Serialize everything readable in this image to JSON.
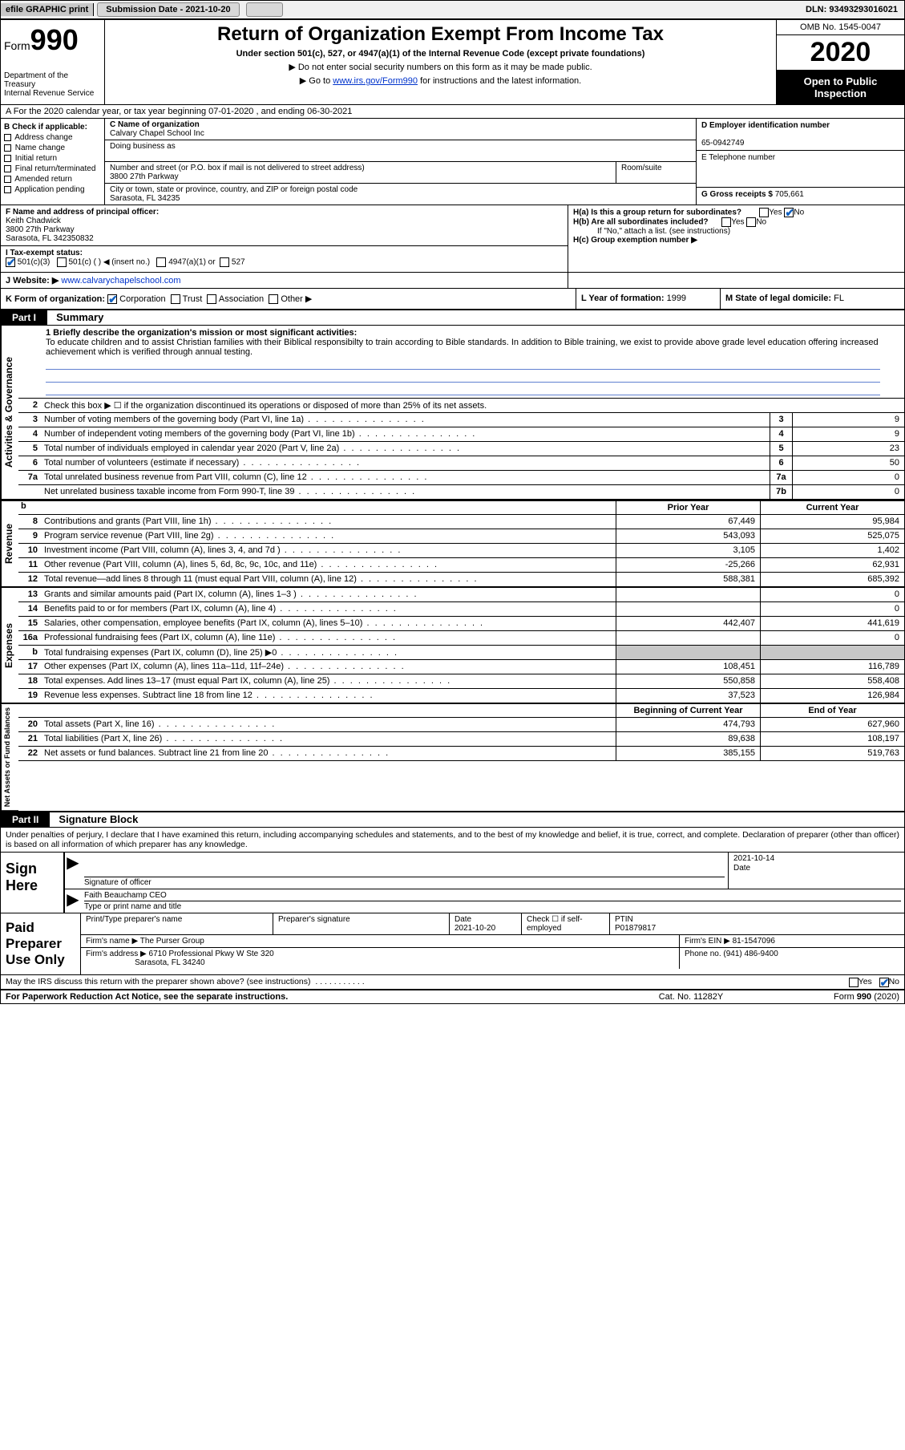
{
  "topbar": {
    "efile": "efile GRAPHIC print",
    "submission_label": "Submission Date - 2021-10-20",
    "dln": "DLN: 93493293016021"
  },
  "header": {
    "form_word": "Form",
    "form_num": "990",
    "dept": "Department of the Treasury\nInternal Revenue Service",
    "title": "Return of Organization Exempt From Income Tax",
    "subtitle": "Under section 501(c), 527, or 4947(a)(1) of the Internal Revenue Code (except private foundations)",
    "arrow1": "▶ Do not enter social security numbers on this form as it may be made public.",
    "arrow2_pre": "▶ Go to ",
    "arrow2_link": "www.irs.gov/Form990",
    "arrow2_post": " for instructions and the latest information.",
    "omb": "OMB No. 1545-0047",
    "year": "2020",
    "open": "Open to Public Inspection"
  },
  "lineA": "A For the 2020 calendar year, or tax year beginning 07-01-2020    , and ending 06-30-2021",
  "B": {
    "header": "B Check if applicable:",
    "items": [
      "Address change",
      "Name change",
      "Initial return",
      "Final return/terminated",
      "Amended return",
      "Application pending"
    ]
  },
  "C": {
    "name_label": "C Name of organization",
    "name": "Calvary Chapel School Inc",
    "dba_label": "Doing business as",
    "dba": "",
    "street_label": "Number and street (or P.O. box if mail is not delivered to street address)",
    "room_label": "Room/suite",
    "street": "3800 27th Parkway",
    "city_label": "City or town, state or province, country, and ZIP or foreign postal code",
    "city": "Sarasota, FL  34235"
  },
  "D": {
    "label": "D Employer identification number",
    "value": "65-0942749"
  },
  "E": {
    "label": "E Telephone number",
    "value": ""
  },
  "G": {
    "label": "G Gross receipts $",
    "value": "705,661"
  },
  "F": {
    "label": "F  Name and address of principal officer:",
    "name": "Keith Chadwick",
    "addr1": "3800 27th Parkway",
    "addr2": "Sarasota, FL  342350832"
  },
  "H": {
    "a": "H(a)  Is this a group return for subordinates?",
    "a_yes": "Yes",
    "a_no": "No",
    "b": "H(b)  Are all subordinates included?",
    "b_yes": "Yes",
    "b_no": "No",
    "b_note": "If \"No,\" attach a list. (see instructions)",
    "c": "H(c)  Group exemption number ▶"
  },
  "I": {
    "label": "I   Tax-exempt status:",
    "opts": [
      "501(c)(3)",
      "501(c) (  ) ◀ (insert no.)",
      "4947(a)(1) or",
      "527"
    ]
  },
  "J": {
    "label": "J   Website: ▶",
    "value": "www.calvarychapelschool.com"
  },
  "K": {
    "label": "K Form of organization:",
    "opts": [
      "Corporation",
      "Trust",
      "Association",
      "Other ▶"
    ]
  },
  "L": {
    "label": "L Year of formation:",
    "value": "1999"
  },
  "M": {
    "label": "M State of legal domicile:",
    "value": "FL"
  },
  "part1": {
    "header": "Part I",
    "title": "Summary",
    "q1": "1  Briefly describe the organization's mission or most significant activities:",
    "mission": "To educate children and to assist Christian families with their Biblical responsibilty to train according to Bible standards. In addition to Bible training, we exist to provide above grade level education offering increased achievement which is verified through annual testing.",
    "q2": "Check this box ▶ ☐  if the organization discontinued its operations or disposed of more than 25% of its net assets.",
    "lines_ag": [
      {
        "n": "3",
        "d": "Number of voting members of the governing body (Part VI, line 1a)",
        "box": "3",
        "v": "9"
      },
      {
        "n": "4",
        "d": "Number of independent voting members of the governing body (Part VI, line 1b)",
        "box": "4",
        "v": "9"
      },
      {
        "n": "5",
        "d": "Total number of individuals employed in calendar year 2020 (Part V, line 2a)",
        "box": "5",
        "v": "23"
      },
      {
        "n": "6",
        "d": "Total number of volunteers (estimate if necessary)",
        "box": "6",
        "v": "50"
      },
      {
        "n": "7a",
        "d": "Total unrelated business revenue from Part VIII, column (C), line 12",
        "box": "7a",
        "v": "0"
      },
      {
        "n": "",
        "d": "Net unrelated business taxable income from Form 990-T, line 39",
        "box": "7b",
        "v": "0"
      }
    ],
    "col_prior": "Prior Year",
    "col_current": "Current Year",
    "revenue": [
      {
        "n": "8",
        "d": "Contributions and grants (Part VIII, line 1h)",
        "p": "67,449",
        "c": "95,984"
      },
      {
        "n": "9",
        "d": "Program service revenue (Part VIII, line 2g)",
        "p": "543,093",
        "c": "525,075"
      },
      {
        "n": "10",
        "d": "Investment income (Part VIII, column (A), lines 3, 4, and 7d )",
        "p": "3,105",
        "c": "1,402"
      },
      {
        "n": "11",
        "d": "Other revenue (Part VIII, column (A), lines 5, 6d, 8c, 9c, 10c, and 11e)",
        "p": "-25,266",
        "c": "62,931"
      },
      {
        "n": "12",
        "d": "Total revenue—add lines 8 through 11 (must equal Part VIII, column (A), line 12)",
        "p": "588,381",
        "c": "685,392"
      }
    ],
    "expenses": [
      {
        "n": "13",
        "d": "Grants and similar amounts paid (Part IX, column (A), lines 1–3 )",
        "p": "",
        "c": "0"
      },
      {
        "n": "14",
        "d": "Benefits paid to or for members (Part IX, column (A), line 4)",
        "p": "",
        "c": "0"
      },
      {
        "n": "15",
        "d": "Salaries, other compensation, employee benefits (Part IX, column (A), lines 5–10)",
        "p": "442,407",
        "c": "441,619"
      },
      {
        "n": "16a",
        "d": "Professional fundraising fees (Part IX, column (A), line 11e)",
        "p": "",
        "c": "0"
      },
      {
        "n": "b",
        "d": "Total fundraising expenses (Part IX, column (D), line 25) ▶0",
        "p": "",
        "c": "",
        "shade": true
      },
      {
        "n": "17",
        "d": "Other expenses (Part IX, column (A), lines 11a–11d, 11f–24e)",
        "p": "108,451",
        "c": "116,789"
      },
      {
        "n": "18",
        "d": "Total expenses. Add lines 13–17 (must equal Part IX, column (A), line 25)",
        "p": "550,858",
        "c": "558,408"
      },
      {
        "n": "19",
        "d": "Revenue less expenses. Subtract line 18 from line 12",
        "p": "37,523",
        "c": "126,984"
      }
    ],
    "col_begin": "Beginning of Current Year",
    "col_end": "End of Year",
    "netassets": [
      {
        "n": "20",
        "d": "Total assets (Part X, line 16)",
        "p": "474,793",
        "c": "627,960"
      },
      {
        "n": "21",
        "d": "Total liabilities (Part X, line 26)",
        "p": "89,638",
        "c": "108,197"
      },
      {
        "n": "22",
        "d": "Net assets or fund balances. Subtract line 21 from line 20",
        "p": "385,155",
        "c": "519,763"
      }
    ]
  },
  "part2": {
    "header": "Part II",
    "title": "Signature Block",
    "intro": "Under penalties of perjury, I declare that I have examined this return, including accompanying schedules and statements, and to the best of my knowledge and belief, it is true, correct, and complete. Declaration of preparer (other than officer) is based on all information of which preparer has any knowledge.",
    "sign_here": "Sign Here",
    "sig_officer_lbl": "Signature of officer",
    "sig_date": "2021-10-14",
    "sig_date_lbl": "Date",
    "officer_name": "Faith Beauchamp CEO",
    "officer_name_lbl": "Type or print name and title",
    "paid_prep": "Paid Preparer Use Only",
    "prep_name_lbl": "Print/Type preparer's name",
    "prep_sig_lbl": "Preparer's signature",
    "prep_date_lbl": "Date",
    "prep_date": "2021-10-20",
    "prep_check": "Check ☐ if self-employed",
    "ptin_lbl": "PTIN",
    "ptin": "P01879817",
    "firm_name_lbl": "Firm's name    ▶",
    "firm_name": "The Purser Group",
    "firm_ein_lbl": "Firm's EIN ▶",
    "firm_ein": "81-1547096",
    "firm_addr_lbl": "Firm's address ▶",
    "firm_addr1": "6710 Professional Pkwy W Ste 320",
    "firm_addr2": "Sarasota, FL  34240",
    "phone_lbl": "Phone no.",
    "phone": "(941) 486-9400",
    "discuss": "May the IRS discuss this return with the preparer shown above? (see instructions)",
    "discuss_yes": "Yes",
    "discuss_no": "No"
  },
  "footer": {
    "left": "For Paperwork Reduction Act Notice, see the separate instructions.",
    "mid": "Cat. No. 11282Y",
    "right": "Form 990 (2020)"
  },
  "vtabs": {
    "ag": "Activities & Governance",
    "rev": "Revenue",
    "exp": "Expenses",
    "na": "Net Assets or Fund Balances"
  }
}
